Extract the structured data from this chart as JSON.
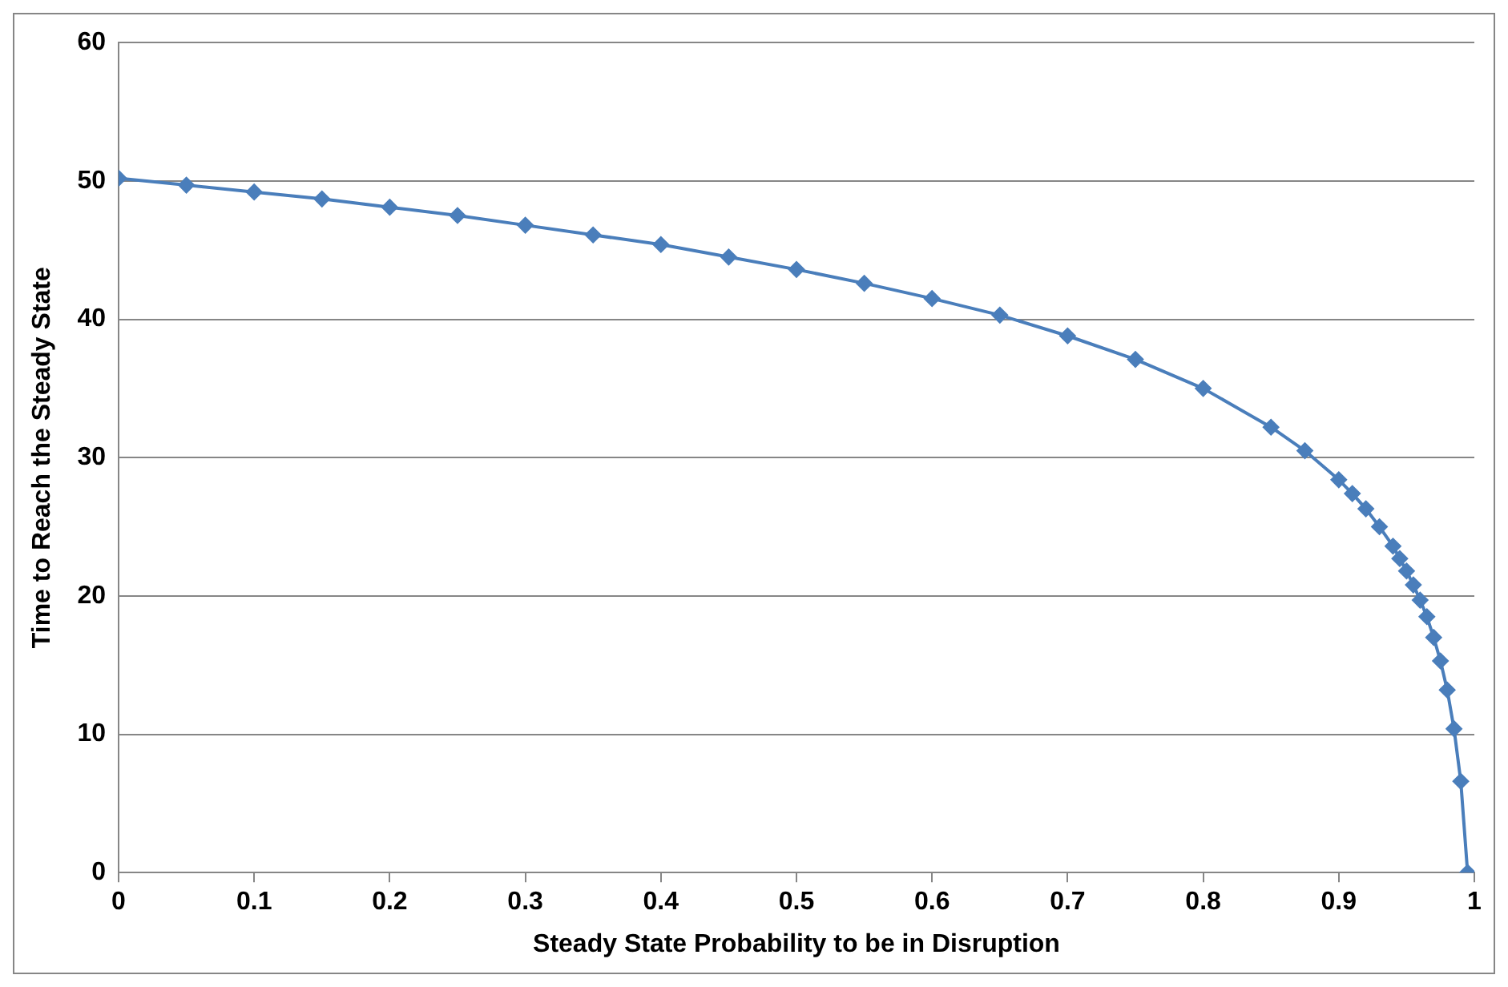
{
  "chart_data": {
    "type": "line",
    "xlabel": "Steady State Probability to be in Disruption",
    "ylabel": "Time to Reach the Steady State",
    "x": [
      0,
      0.05,
      0.1,
      0.15,
      0.2,
      0.25,
      0.3,
      0.35,
      0.4,
      0.45,
      0.5,
      0.55,
      0.6,
      0.65,
      0.7,
      0.75,
      0.8,
      0.85,
      0.875,
      0.9,
      0.91,
      0.92,
      0.93,
      0.94,
      0.945,
      0.95,
      0.955,
      0.96,
      0.965,
      0.97,
      0.975,
      0.98,
      0.985,
      0.99,
      0.995
    ],
    "series": [
      {
        "color": "#4a7ebb",
        "values": [
          50.2,
          49.7,
          49.2,
          48.7,
          48.1,
          47.5,
          46.8,
          46.1,
          45.4,
          44.5,
          43.6,
          42.6,
          41.5,
          40.3,
          38.8,
          37.1,
          35.0,
          32.2,
          30.5,
          28.4,
          27.4,
          26.3,
          25.0,
          23.6,
          22.7,
          21.8,
          20.8,
          19.7,
          18.5,
          17.0,
          15.3,
          13.2,
          10.4,
          6.6,
          0
        ]
      }
    ],
    "xlim": [
      0,
      1
    ],
    "xticks": [
      0,
      0.1,
      0.2,
      0.3,
      0.4,
      0.5,
      0.6,
      0.7,
      0.8,
      0.9,
      1
    ],
    "ylim": [
      0,
      60
    ],
    "yticks": [
      0,
      10,
      20,
      30,
      40,
      50,
      60
    ],
    "grid": "y",
    "legend": false,
    "marker": "diamond",
    "line_style": "solid"
  }
}
